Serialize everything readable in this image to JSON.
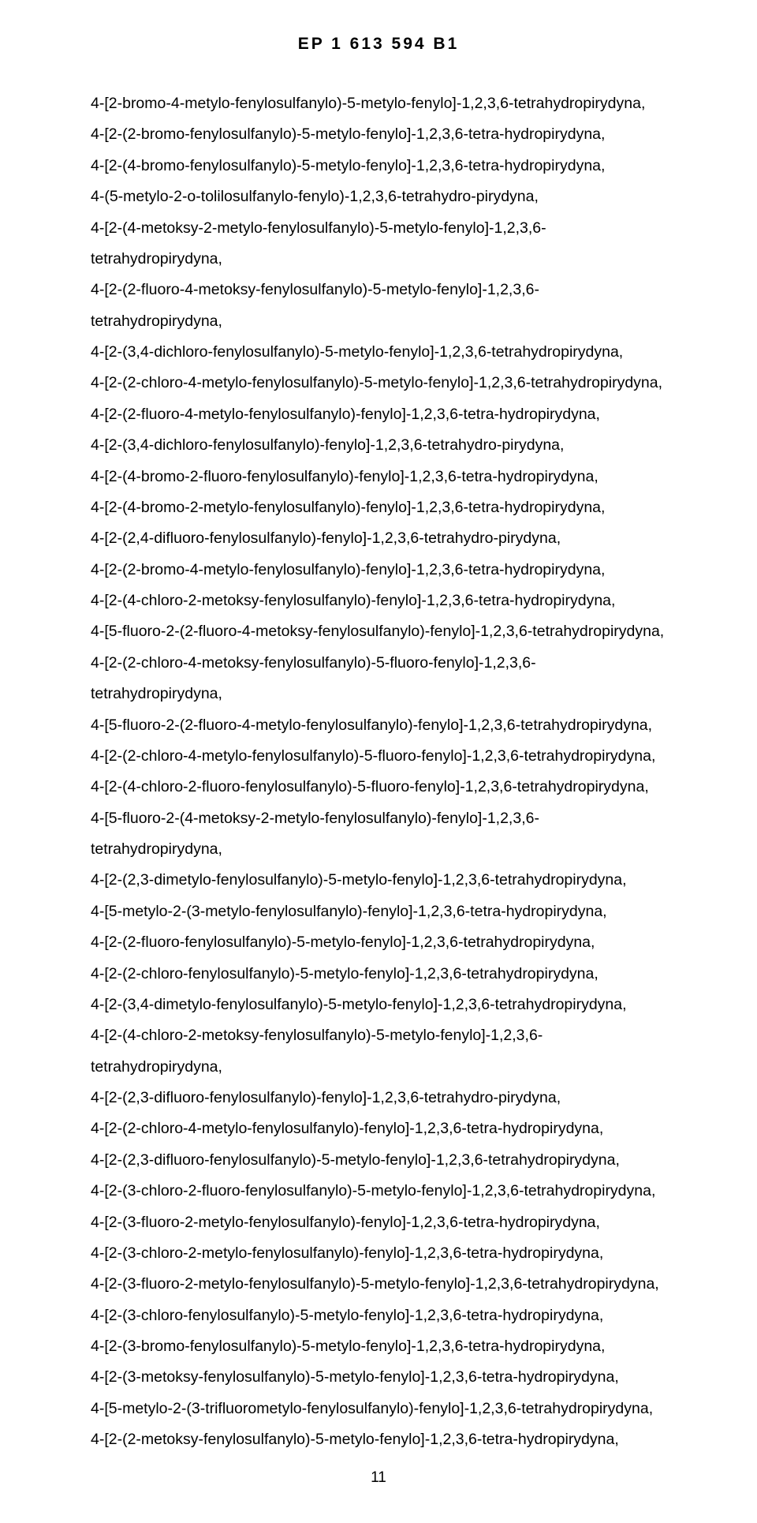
{
  "header": "EP 1 613 594 B1",
  "page_number": "11",
  "lines": [
    "4-[2-bromo-4-metylo-fenylosulfanylo)-5-metylo-fenylo]-1,2,3,6-tetrahydropirydyna,",
    "4-[2-(2-bromo-fenylosulfanylo)-5-metylo-fenylo]-1,2,3,6-tetra-hydropirydyna,",
    "4-[2-(4-bromo-fenylosulfanylo)-5-metylo-fenylo]-1,2,3,6-tetra-hydropirydyna,",
    "4-(5-metylo-2-o-tolilosulfanylo-fenylo)-1,2,3,6-tetrahydro-pirydyna,",
    "4-[2-(4-metoksy-2-metylo-fenylosulfanylo)-5-metylo-fenylo]-1,2,3,6-tetrahydropirydyna,",
    "4-[2-(2-fluoro-4-metoksy-fenylosulfanylo)-5-metylo-fenylo]-1,2,3,6-tetrahydropirydyna,",
    "4-[2-(3,4-dichloro-fenylosulfanylo)-5-metylo-fenylo]-1,2,3,6-tetrahydropirydyna,",
    "4-[2-(2-chloro-4-metylo-fenylosulfanylo)-5-metylo-fenylo]-1,2,3,6-tetrahydropirydyna,",
    "4-[2-(2-fluoro-4-metylo-fenylosulfanylo)-fenylo]-1,2,3,6-tetra-hydropirydyna,",
    "4-[2-(3,4-dichloro-fenylosulfanylo)-fenylo]-1,2,3,6-tetrahydro-pirydyna,",
    "4-[2-(4-bromo-2-fluoro-fenylosulfanylo)-fenylo]-1,2,3,6-tetra-hydropirydyna,",
    "4-[2-(4-bromo-2-metylo-fenylosulfanylo)-fenylo]-1,2,3,6-tetra-hydropirydyna,",
    "4-[2-(2,4-difluoro-fenylosulfanylo)-fenylo]-1,2,3,6-tetrahydro-pirydyna,",
    "4-[2-(2-bromo-4-metylo-fenylosulfanylo)-fenylo]-1,2,3,6-tetra-hydropirydyna,",
    "4-[2-(4-chloro-2-metoksy-fenylosulfanylo)-fenylo]-1,2,3,6-tetra-hydropirydyna,",
    "4-[5-fluoro-2-(2-fluoro-4-metoksy-fenylosulfanylo)-fenylo]-1,2,3,6-tetrahydropirydyna,",
    "4-[2-(2-chloro-4-metoksy-fenylosulfanylo)-5-fluoro-fenylo]-1,2,3,6-tetrahydropirydyna,",
    "4-[5-fluoro-2-(2-fluoro-4-metylo-fenylosulfanylo)-fenylo]-1,2,3,6-tetrahydropirydyna,",
    "4-[2-(2-chloro-4-metylo-fenylosulfanylo)-5-fluoro-fenylo]-1,2,3,6-tetrahydropirydyna,",
    "4-[2-(4-chloro-2-fluoro-fenylosulfanylo)-5-fluoro-fenylo]-1,2,3,6-tetrahydropirydyna,",
    "4-[5-fluoro-2-(4-metoksy-2-metylo-fenylosulfanylo)-fenylo]-1,2,3,6-tetrahydropirydyna,",
    "4-[2-(2,3-dimetylo-fenylosulfanylo)-5-metylo-fenylo]-1,2,3,6-tetrahydropirydyna,",
    "4-[5-metylo-2-(3-metylo-fenylosulfanylo)-fenylo]-1,2,3,6-tetra-hydropirydyna,",
    "4-[2-(2-fluoro-fenylosulfanylo)-5-metylo-fenylo]-1,2,3,6-tetrahydropirydyna,",
    "4-[2-(2-chloro-fenylosulfanylo)-5-metylo-fenylo]-1,2,3,6-tetrahydropirydyna,",
    "4-[2-(3,4-dimetylo-fenylosulfanylo)-5-metylo-fenylo]-1,2,3,6-tetrahydropirydyna,",
    "4-[2-(4-chloro-2-metoksy-fenylosulfanylo)-5-metylo-fenylo]-1,2,3,6-tetrahydropirydyna,",
    "4-[2-(2,3-difluoro-fenylosulfanylo)-fenylo]-1,2,3,6-tetrahydro-pirydyna,",
    "4-[2-(2-chloro-4-metylo-fenylosulfanylo)-fenylo]-1,2,3,6-tetra-hydropirydyna,",
    "4-[2-(2,3-difluoro-fenylosulfanylo)-5-metylo-fenylo]-1,2,3,6-tetrahydropirydyna,",
    "4-[2-(3-chloro-2-fluoro-fenylosulfanylo)-5-metylo-fenylo]-1,2,3,6-tetrahydropirydyna,",
    "4-[2-(3-fluoro-2-metylo-fenylosulfanylo)-fenylo]-1,2,3,6-tetra-hydropirydyna,",
    "4-[2-(3-chloro-2-metylo-fenylosulfanylo)-fenylo]-1,2,3,6-tetra-hydropirydyna,",
    "4-[2-(3-fluoro-2-metylo-fenylosulfanylo)-5-metylo-fenylo]-1,2,3,6-tetrahydropirydyna,",
    "4-[2-(3-chloro-fenylosulfanylo)-5-metylo-fenylo]-1,2,3,6-tetra-hydropirydyna,",
    "4-[2-(3-bromo-fenylosulfanylo)-5-metylo-fenylo]-1,2,3,6-tetra-hydropirydyna,",
    "4-[2-(3-metoksy-fenylosulfanylo)-5-metylo-fenylo]-1,2,3,6-tetra-hydropirydyna,",
    "4-[5-metylo-2-(3-trifluorometylo-fenylosulfanylo)-fenylo]-1,2,3,6-tetrahydropirydyna,",
    "4-[2-(2-metoksy-fenylosulfanylo)-5-metylo-fenylo]-1,2,3,6-tetra-hydropirydyna,"
  ]
}
